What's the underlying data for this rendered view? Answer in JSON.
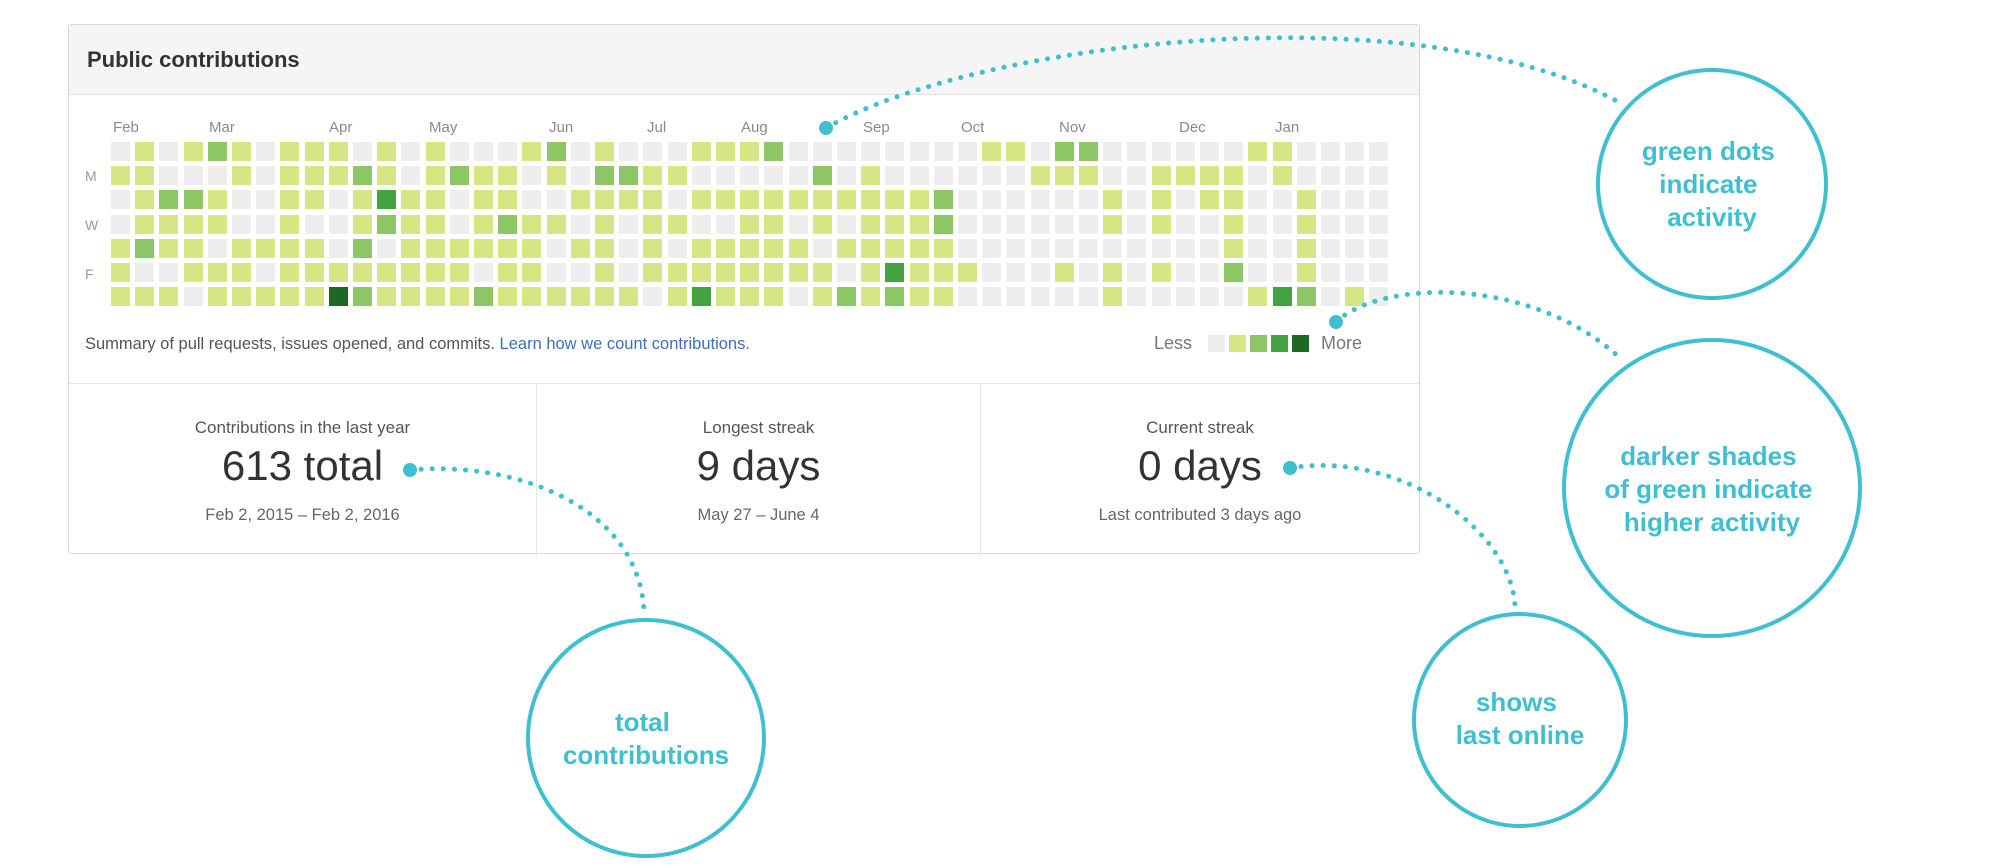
{
  "panel": {
    "title": "Public contributions",
    "months": [
      "Feb",
      "Mar",
      "Apr",
      "May",
      "Jun",
      "Jul",
      "Aug",
      "Sep",
      "Oct",
      "Nov",
      "Dec",
      "Jan"
    ],
    "day_labels": [
      "M",
      "W",
      "F"
    ],
    "summary_text": "Summary of pull requests, issues opened, and commits.",
    "learn_link": "Learn how we count contributions.",
    "legend": {
      "less": "Less",
      "more": "More"
    },
    "colors": [
      "#eeeeee",
      "#d6e685",
      "#8cc665",
      "#44a340",
      "#1e6823"
    ],
    "heatmap_levels": [
      "01012101110101000120100011120000000011022000000110000",
      "11000101112101211010221100000201000000111001111010000",
      "01221001101311011001111011111111112000000101011001000",
      "01111001001211012110101100110101112000000101001001000",
      "12110111102011111101101011111011111000000000001001000",
      "10011101111111101100101111111101311100010101002001000",
      "11101111142111121111110131110121211000000100000132010"
    ],
    "stats": [
      {
        "label": "Contributions in the last year",
        "value": "613 total",
        "sub": "Feb 2, 2015 – Feb 2, 2016"
      },
      {
        "label": "Longest streak",
        "value": "9 days",
        "sub": "May 27 – June 4"
      },
      {
        "label": "Current streak",
        "value": "0 days",
        "sub": "Last contributed 3 days ago"
      }
    ]
  },
  "callouts": [
    {
      "lines": [
        "green dots",
        "indicate",
        "activity"
      ]
    },
    {
      "lines": [
        "darker shades",
        "of green indicate",
        "higher activity"
      ]
    },
    {
      "lines": [
        "total",
        "contributions"
      ]
    },
    {
      "lines": [
        "shows",
        "last online"
      ]
    }
  ],
  "accent_color": "#3fbfcf"
}
